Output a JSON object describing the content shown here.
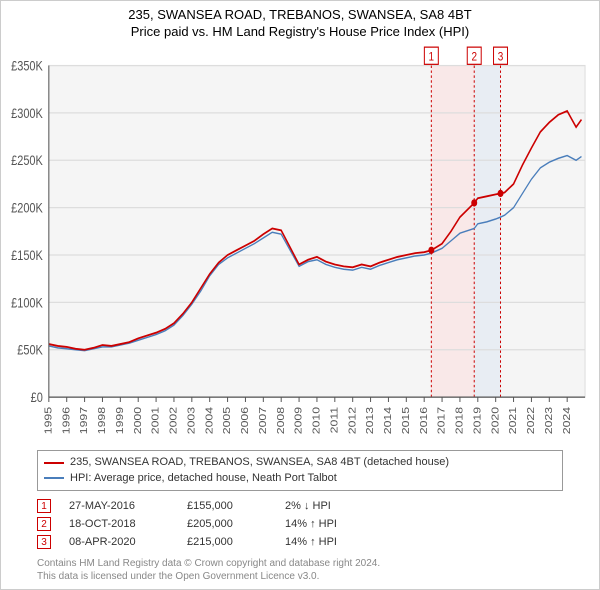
{
  "titles": {
    "main": "235, SWANSEA ROAD, TREBANOS, SWANSEA, SA8 4BT",
    "sub": "Price paid vs. HM Land Registry's House Price Index (HPI)"
  },
  "chart": {
    "type": "line",
    "plot_bg": "#f5f5f5",
    "grid_color": "#dddddd",
    "axis_color": "#555555",
    "x_years": [
      1995,
      1996,
      1997,
      1998,
      1999,
      2000,
      2001,
      2002,
      2003,
      2004,
      2005,
      2006,
      2007,
      2008,
      2009,
      2010,
      2011,
      2012,
      2013,
      2014,
      2015,
      2016,
      2017,
      2018,
      2019,
      2020,
      2021,
      2022,
      2023,
      2024
    ],
    "x_rotate": -90,
    "ylim": [
      0,
      350000
    ],
    "ytick_step": 50000,
    "ytick_labels": [
      "£0",
      "£50K",
      "£100K",
      "£150K",
      "£200K",
      "£250K",
      "£300K",
      "£350K"
    ],
    "label_fontsize": 11,
    "tick_fontsize": 10,
    "series": [
      {
        "name": "property",
        "color": "#cc0000",
        "width": 1.5,
        "data": [
          [
            1995,
            56000
          ],
          [
            1995.5,
            54000
          ],
          [
            1996,
            53000
          ],
          [
            1996.5,
            51000
          ],
          [
            1997,
            50000
          ],
          [
            1997.5,
            52000
          ],
          [
            1998,
            55000
          ],
          [
            1998.5,
            54000
          ],
          [
            1999,
            56000
          ],
          [
            1999.5,
            58000
          ],
          [
            2000,
            62000
          ],
          [
            2000.5,
            65000
          ],
          [
            2001,
            68000
          ],
          [
            2001.5,
            72000
          ],
          [
            2002,
            78000
          ],
          [
            2002.5,
            88000
          ],
          [
            2003,
            100000
          ],
          [
            2003.5,
            115000
          ],
          [
            2004,
            130000
          ],
          [
            2004.5,
            142000
          ],
          [
            2005,
            150000
          ],
          [
            2005.5,
            155000
          ],
          [
            2006,
            160000
          ],
          [
            2006.5,
            165000
          ],
          [
            2007,
            172000
          ],
          [
            2007.5,
            178000
          ],
          [
            2008,
            176000
          ],
          [
            2008.5,
            158000
          ],
          [
            2009,
            140000
          ],
          [
            2009.5,
            145000
          ],
          [
            2010,
            148000
          ],
          [
            2010.5,
            143000
          ],
          [
            2011,
            140000
          ],
          [
            2011.5,
            138000
          ],
          [
            2012,
            137000
          ],
          [
            2012.5,
            140000
          ],
          [
            2013,
            138000
          ],
          [
            2013.5,
            142000
          ],
          [
            2014,
            145000
          ],
          [
            2014.5,
            148000
          ],
          [
            2015,
            150000
          ],
          [
            2015.5,
            152000
          ],
          [
            2016,
            153000
          ],
          [
            2016.4,
            155000
          ],
          [
            2017,
            162000
          ],
          [
            2017.5,
            175000
          ],
          [
            2018,
            190000
          ],
          [
            2018.8,
            205000
          ],
          [
            2019,
            210000
          ],
          [
            2019.5,
            212000
          ],
          [
            2020,
            214000
          ],
          [
            2020.27,
            215000
          ],
          [
            2020.5,
            216000
          ],
          [
            2021,
            225000
          ],
          [
            2021.5,
            245000
          ],
          [
            2022,
            263000
          ],
          [
            2022.5,
            280000
          ],
          [
            2023,
            290000
          ],
          [
            2023.5,
            298000
          ],
          [
            2024,
            302000
          ],
          [
            2024.5,
            285000
          ],
          [
            2024.8,
            293000
          ]
        ]
      },
      {
        "name": "hpi",
        "color": "#4a7ebb",
        "width": 1.2,
        "data": [
          [
            1995,
            54000
          ],
          [
            1995.5,
            52000
          ],
          [
            1996,
            51000
          ],
          [
            1996.5,
            50000
          ],
          [
            1997,
            49000
          ],
          [
            1997.5,
            51000
          ],
          [
            1998,
            53000
          ],
          [
            1998.5,
            53000
          ],
          [
            1999,
            55000
          ],
          [
            1999.5,
            57000
          ],
          [
            2000,
            60000
          ],
          [
            2000.5,
            63000
          ],
          [
            2001,
            66000
          ],
          [
            2001.5,
            70000
          ],
          [
            2002,
            76000
          ],
          [
            2002.5,
            86000
          ],
          [
            2003,
            98000
          ],
          [
            2003.5,
            112000
          ],
          [
            2004,
            128000
          ],
          [
            2004.5,
            140000
          ],
          [
            2005,
            147000
          ],
          [
            2005.5,
            152000
          ],
          [
            2006,
            157000
          ],
          [
            2006.5,
            162000
          ],
          [
            2007,
            168000
          ],
          [
            2007.5,
            174000
          ],
          [
            2008,
            172000
          ],
          [
            2008.5,
            155000
          ],
          [
            2009,
            138000
          ],
          [
            2009.5,
            143000
          ],
          [
            2010,
            145000
          ],
          [
            2010.5,
            140000
          ],
          [
            2011,
            137000
          ],
          [
            2011.5,
            135000
          ],
          [
            2012,
            134000
          ],
          [
            2012.5,
            137000
          ],
          [
            2013,
            135000
          ],
          [
            2013.5,
            139000
          ],
          [
            2014,
            142000
          ],
          [
            2014.5,
            145000
          ],
          [
            2015,
            147000
          ],
          [
            2015.5,
            149000
          ],
          [
            2016,
            150000
          ],
          [
            2016.4,
            152000
          ],
          [
            2017,
            157000
          ],
          [
            2017.5,
            165000
          ],
          [
            2018,
            173000
          ],
          [
            2018.8,
            178000
          ],
          [
            2019,
            183000
          ],
          [
            2019.5,
            185000
          ],
          [
            2020,
            188000
          ],
          [
            2020.27,
            190000
          ],
          [
            2020.5,
            192000
          ],
          [
            2021,
            200000
          ],
          [
            2021.5,
            215000
          ],
          [
            2022,
            230000
          ],
          [
            2022.5,
            242000
          ],
          [
            2023,
            248000
          ],
          [
            2023.5,
            252000
          ],
          [
            2024,
            255000
          ],
          [
            2024.5,
            250000
          ],
          [
            2024.8,
            254000
          ]
        ]
      }
    ],
    "transactions": [
      {
        "n": "1",
        "year": 2016.4,
        "price": 155000,
        "shade_to": 2018.8
      },
      {
        "n": "2",
        "year": 2018.8,
        "price": 205000,
        "shade_to": 2020.27
      },
      {
        "n": "3",
        "year": 2020.27,
        "price": 215000,
        "shade_to": null
      }
    ],
    "marker_border": "#cc0000",
    "marker_text": "#cc0000",
    "marker_bg": "#ffffff",
    "marker_size": 14,
    "shade_colors": [
      "#fbe0e0",
      "#e0e8f2"
    ],
    "vline_color": "#cc0000",
    "vline_dash": "2,2"
  },
  "legend": {
    "items": [
      {
        "color": "#cc0000",
        "label": "235, SWANSEA ROAD, TREBANOS, SWANSEA, SA8 4BT (detached house)"
      },
      {
        "color": "#4a7ebb",
        "label": "HPI: Average price, detached house, Neath Port Talbot"
      }
    ]
  },
  "transactions_table": [
    {
      "n": "1",
      "date": "27-MAY-2016",
      "price": "£155,000",
      "hpi": "2% ↓ HPI"
    },
    {
      "n": "2",
      "date": "18-OCT-2018",
      "price": "£205,000",
      "hpi": "14% ↑ HPI"
    },
    {
      "n": "3",
      "date": "08-APR-2020",
      "price": "£215,000",
      "hpi": "14% ↑ HPI"
    }
  ],
  "footer": {
    "line1": "Contains HM Land Registry data © Crown copyright and database right 2024.",
    "line2": "This data is licensed under the Open Government Licence v3.0."
  }
}
